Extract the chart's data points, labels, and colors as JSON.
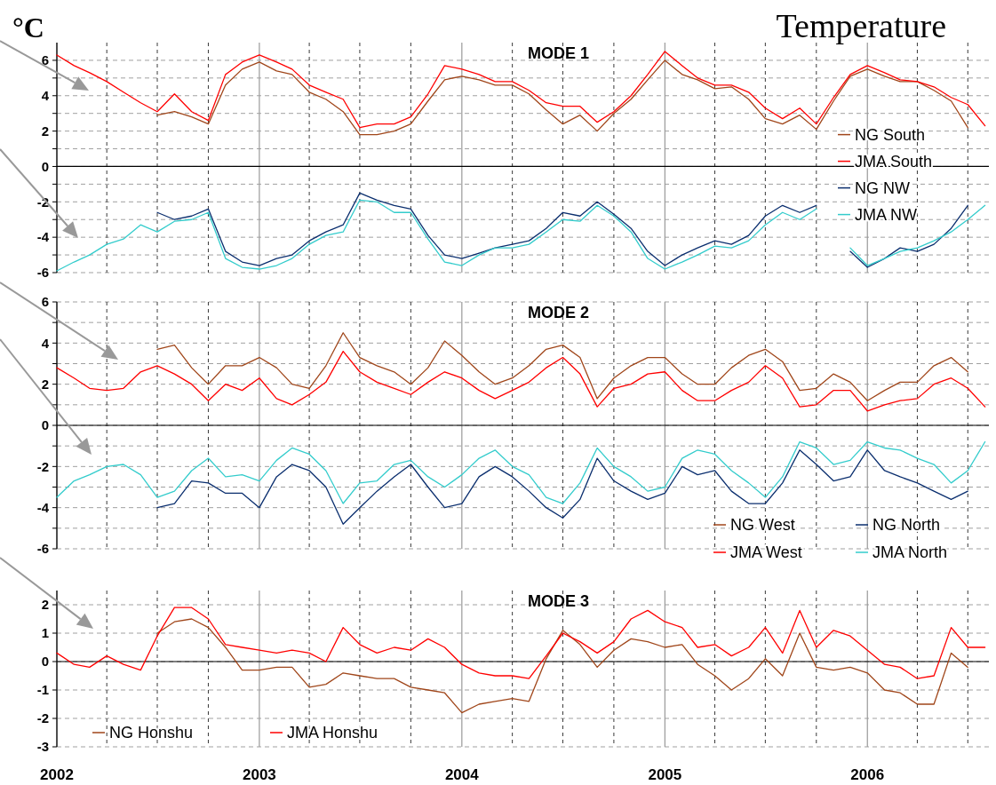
{
  "chart_data": [
    {
      "type": "line",
      "title": "MODE 1",
      "ylabel": "°C",
      "annotations": [
        "Temperature"
      ],
      "x": [
        "2002-01",
        "2002-02",
        "2002-03",
        "2002-04",
        "2002-05",
        "2002-06",
        "2002-07",
        "2002-08",
        "2002-09",
        "2002-10",
        "2002-11",
        "2002-12",
        "2003-01",
        "2003-02",
        "2003-03",
        "2003-04",
        "2003-05",
        "2003-06",
        "2003-07",
        "2003-08",
        "2003-09",
        "2003-10",
        "2003-11",
        "2003-12",
        "2004-01",
        "2004-02",
        "2004-03",
        "2004-04",
        "2004-05",
        "2004-06",
        "2004-07",
        "2004-08",
        "2004-09",
        "2004-10",
        "2004-11",
        "2004-12",
        "2005-01",
        "2005-02",
        "2005-03",
        "2005-04",
        "2005-05",
        "2005-06",
        "2005-07",
        "2005-08",
        "2005-09",
        "2005-10",
        "2005-11",
        "2005-12",
        "2006-01",
        "2006-02",
        "2006-03",
        "2006-04",
        "2006-05",
        "2006-06",
        "2006-07",
        "2006-08"
      ],
      "series": [
        {
          "name": "NG South",
          "color": "#a0461a",
          "values": [
            null,
            null,
            null,
            null,
            null,
            null,
            2.9,
            3.1,
            2.8,
            2.4,
            4.6,
            5.5,
            5.9,
            5.4,
            5.2,
            4.2,
            3.8,
            3.1,
            1.8,
            1.8,
            2.0,
            2.4,
            3.7,
            4.9,
            5.1,
            4.9,
            4.6,
            4.6,
            4.1,
            3.2,
            2.4,
            2.9,
            2.0,
            3.0,
            3.8,
            4.9,
            6.0,
            5.2,
            4.9,
            4.4,
            4.5,
            3.8,
            2.7,
            2.4,
            2.9,
            2.1,
            3.7,
            5.1,
            5.5,
            5.1,
            4.8,
            4.8,
            4.3,
            3.7,
            2.2,
            null
          ]
        },
        {
          "name": "JMA South",
          "color": "#ff0000",
          "values": [
            6.3,
            5.7,
            5.3,
            4.8,
            4.2,
            3.6,
            3.1,
            4.1,
            3.1,
            2.6,
            5.2,
            5.9,
            6.3,
            5.9,
            5.5,
            4.6,
            4.2,
            3.8,
            2.2,
            2.4,
            2.4,
            2.8,
            4.1,
            5.7,
            5.5,
            5.2,
            4.8,
            4.8,
            4.3,
            3.6,
            3.4,
            3.4,
            2.5,
            3.1,
            4.0,
            5.2,
            6.5,
            5.7,
            5.0,
            4.6,
            4.6,
            4.2,
            3.3,
            2.7,
            3.3,
            2.4,
            3.9,
            5.2,
            5.7,
            5.3,
            4.9,
            4.8,
            4.5,
            3.9,
            3.5,
            2.3
          ]
        },
        {
          "name": "NG NW",
          "color": "#0a2e6e",
          "values": [
            null,
            null,
            null,
            null,
            null,
            null,
            -2.6,
            -3.0,
            -2.8,
            -2.4,
            -4.8,
            -5.4,
            -5.6,
            -5.2,
            -5.0,
            -4.2,
            -3.7,
            -3.3,
            -1.5,
            -1.9,
            -2.2,
            -2.4,
            -3.9,
            -5.0,
            -5.2,
            -4.9,
            -4.6,
            -4.4,
            -4.2,
            -3.5,
            -2.6,
            -2.8,
            -2.0,
            -2.7,
            -3.5,
            -4.8,
            -5.6,
            -5.0,
            -4.6,
            -4.2,
            -4.4,
            -3.9,
            -2.8,
            -2.2,
            -2.6,
            -2.2,
            null,
            -4.8,
            -5.7,
            -5.2,
            -4.6,
            -4.8,
            -4.4,
            -3.5,
            -2.2,
            null
          ]
        },
        {
          "name": "JMA NW",
          "color": "#33cccc",
          "values": [
            -5.9,
            -5.4,
            -5.0,
            -4.4,
            -4.1,
            -3.3,
            -3.7,
            -3.1,
            -3.0,
            -2.6,
            -5.2,
            -5.7,
            -5.8,
            -5.6,
            -5.2,
            -4.4,
            -3.9,
            -3.7,
            -1.9,
            -2.0,
            -2.6,
            -2.6,
            -4.1,
            -5.4,
            -5.6,
            -5.0,
            -4.6,
            -4.6,
            -4.4,
            -3.7,
            -3.0,
            -3.1,
            -2.2,
            -2.8,
            -3.7,
            -5.2,
            -5.8,
            -5.4,
            -5.0,
            -4.5,
            -4.6,
            -4.2,
            -3.3,
            -2.6,
            -3.0,
            -2.4,
            null,
            -4.6,
            -5.6,
            -5.2,
            -4.8,
            -4.6,
            -4.2,
            -3.7,
            -3.0,
            -2.2
          ]
        }
      ],
      "xlim": [
        "2002-01-01",
        "2006-08-08"
      ],
      "xticks": [
        "2002",
        {
          "value": "2002-04",
          "label": null
        },
        {
          "value": "2002-07",
          "label": null
        },
        {
          "value": "2002-10",
          "label": null
        },
        "2003",
        {
          "value": "2003-04",
          "label": null
        },
        {
          "value": "2003-07",
          "label": null
        },
        {
          "value": "2003-10",
          "label": null
        },
        "2004",
        {
          "value": "2004-04",
          "label": null
        },
        {
          "value": "2004-07",
          "label": null
        },
        {
          "value": "2004-10",
          "label": null
        },
        "2005",
        {
          "value": "2005-04",
          "label": null
        },
        {
          "value": "2005-07",
          "label": null
        },
        {
          "value": "2005-10",
          "label": null
        },
        "2006",
        {
          "value": "2006-04",
          "label": null
        },
        {
          "value": "2006-07",
          "label": null
        }
      ],
      "ylim": [
        -6,
        7
      ],
      "yticks": [
        -6,
        {
          "value": -5,
          "label": null
        },
        -4,
        {
          "value": -3,
          "label": null
        },
        -2,
        {
          "value": -1,
          "label": null
        },
        0,
        {
          "value": 1,
          "label": null
        },
        2,
        {
          "value": 3,
          "label": null
        },
        4,
        {
          "value": 5,
          "label": null
        },
        6
      ],
      "tick_labels": "y",
      "grid": true,
      "legend": "right",
      "line_style": "solid"
    },
    {
      "type": "line",
      "title": "MODE 2",
      "x": [
        "2002-01",
        "2002-02",
        "2002-03",
        "2002-04",
        "2002-05",
        "2002-06",
        "2002-07",
        "2002-08",
        "2002-09",
        "2002-10",
        "2002-11",
        "2002-12",
        "2003-01",
        "2003-02",
        "2003-03",
        "2003-04",
        "2003-05",
        "2003-06",
        "2003-07",
        "2003-08",
        "2003-09",
        "2003-10",
        "2003-11",
        "2003-12",
        "2004-01",
        "2004-02",
        "2004-03",
        "2004-04",
        "2004-05",
        "2004-06",
        "2004-07",
        "2004-08",
        "2004-09",
        "2004-10",
        "2004-11",
        "2004-12",
        "2005-01",
        "2005-02",
        "2005-03",
        "2005-04",
        "2005-05",
        "2005-06",
        "2005-07",
        "2005-08",
        "2005-09",
        "2005-10",
        "2005-11",
        "2005-12",
        "2006-01",
        "2006-02",
        "2006-03",
        "2006-04",
        "2006-05",
        "2006-06",
        "2006-07",
        "2006-08"
      ],
      "series": [
        {
          "name": "NG West",
          "color": "#a0461a",
          "values": [
            null,
            null,
            null,
            null,
            null,
            null,
            3.7,
            3.9,
            2.8,
            2.0,
            2.9,
            2.9,
            3.3,
            2.8,
            2.0,
            1.8,
            2.9,
            4.5,
            3.3,
            2.9,
            2.6,
            2.0,
            2.8,
            4.1,
            3.4,
            2.6,
            2.0,
            2.3,
            2.9,
            3.7,
            3.9,
            3.3,
            1.3,
            2.3,
            2.9,
            3.3,
            3.3,
            2.5,
            2.0,
            2.0,
            2.8,
            3.4,
            3.7,
            3.1,
            1.7,
            1.8,
            2.5,
            2.1,
            1.2,
            1.7,
            2.1,
            2.1,
            2.9,
            3.3,
            2.6,
            null
          ]
        },
        {
          "name": "JMA West",
          "color": "#ff0000",
          "values": [
            2.8,
            2.3,
            1.8,
            1.7,
            1.8,
            2.6,
            2.9,
            2.5,
            2.0,
            1.2,
            2.0,
            1.7,
            2.3,
            1.3,
            1.0,
            1.5,
            2.1,
            3.6,
            2.6,
            2.1,
            1.8,
            1.5,
            2.1,
            2.6,
            2.3,
            1.7,
            1.3,
            1.7,
            2.1,
            2.8,
            3.3,
            2.5,
            0.9,
            1.8,
            2.0,
            2.5,
            2.6,
            1.7,
            1.2,
            1.2,
            1.7,
            2.1,
            2.9,
            2.3,
            0.9,
            1.0,
            1.7,
            1.7,
            0.7,
            1.0,
            1.2,
            1.3,
            2.0,
            2.3,
            1.8,
            0.9
          ]
        },
        {
          "name": "NG North",
          "color": "#0a2e6e",
          "values": [
            null,
            null,
            null,
            null,
            null,
            null,
            -4.0,
            -3.8,
            -2.7,
            -2.8,
            -3.3,
            -3.3,
            -4.0,
            -2.5,
            -1.9,
            -2.2,
            -3.0,
            -4.8,
            -4.0,
            -3.2,
            -2.5,
            -1.9,
            -3.0,
            -4.0,
            -3.8,
            -2.5,
            -2.0,
            -2.5,
            -3.2,
            -4.0,
            -4.5,
            -3.6,
            -1.6,
            -2.7,
            -3.2,
            -3.6,
            -3.3,
            -2.0,
            -2.4,
            -2.2,
            -3.2,
            -3.8,
            -3.8,
            -2.8,
            -1.2,
            -1.9,
            -2.7,
            -2.5,
            -1.2,
            -2.2,
            -2.5,
            -2.8,
            -3.2,
            -3.6,
            -3.2,
            null
          ]
        },
        {
          "name": "JMA North",
          "color": "#33cccc",
          "values": [
            -3.5,
            -2.7,
            -2.4,
            -2.0,
            -1.9,
            -2.4,
            -3.5,
            -3.2,
            -2.2,
            -1.6,
            -2.5,
            -2.4,
            -2.7,
            -1.7,
            -1.1,
            -1.4,
            -2.2,
            -3.8,
            -2.8,
            -2.7,
            -1.9,
            -1.7,
            -2.5,
            -3.0,
            -2.4,
            -1.6,
            -1.2,
            -2.0,
            -2.4,
            -3.5,
            -3.8,
            -2.8,
            -1.1,
            -2.0,
            -2.5,
            -3.2,
            -3.0,
            -1.6,
            -1.2,
            -1.4,
            -2.2,
            -2.8,
            -3.5,
            -2.5,
            -0.8,
            -1.1,
            -1.9,
            -1.7,
            -0.8,
            -1.1,
            -1.2,
            -1.6,
            -1.9,
            -2.8,
            -2.2,
            -0.8
          ]
        }
      ],
      "xlim": [
        "2002-01-01",
        "2006-08-08"
      ],
      "xticks": [
        "2002",
        {
          "value": "2002-04",
          "label": null
        },
        {
          "value": "2002-07",
          "label": null
        },
        {
          "value": "2002-10",
          "label": null
        },
        "2003",
        {
          "value": "2003-04",
          "label": null
        },
        {
          "value": "2003-07",
          "label": null
        },
        {
          "value": "2003-10",
          "label": null
        },
        "2004",
        {
          "value": "2004-04",
          "label": null
        },
        {
          "value": "2004-07",
          "label": null
        },
        {
          "value": "2004-10",
          "label": null
        },
        "2005",
        {
          "value": "2005-04",
          "label": null
        },
        {
          "value": "2005-07",
          "label": null
        },
        {
          "value": "2005-10",
          "label": null
        },
        "2006",
        {
          "value": "2006-04",
          "label": null
        },
        {
          "value": "2006-07",
          "label": null
        }
      ],
      "ylim": [
        -6,
        6
      ],
      "yticks": [
        -6,
        {
          "value": -5,
          "label": null
        },
        -4,
        {
          "value": -3,
          "label": null
        },
        -2,
        {
          "value": -1,
          "label": null
        },
        0,
        {
          "value": 1,
          "label": null
        },
        2,
        {
          "value": 3,
          "label": null
        },
        4,
        {
          "value": 5,
          "label": null
        },
        6
      ],
      "tick_labels": "y",
      "grid": true,
      "legend": "bottom right",
      "line_style": "solid"
    },
    {
      "type": "line",
      "title": "MODE 3",
      "x": [
        "2002-01",
        "2002-02",
        "2002-03",
        "2002-04",
        "2002-05",
        "2002-06",
        "2002-07",
        "2002-08",
        "2002-09",
        "2002-10",
        "2002-11",
        "2002-12",
        "2003-01",
        "2003-02",
        "2003-03",
        "2003-04",
        "2003-05",
        "2003-06",
        "2003-07",
        "2003-08",
        "2003-09",
        "2003-10",
        "2003-11",
        "2003-12",
        "2004-01",
        "2004-02",
        "2004-03",
        "2004-04",
        "2004-05",
        "2004-06",
        "2004-07",
        "2004-08",
        "2004-09",
        "2004-10",
        "2004-11",
        "2004-12",
        "2005-01",
        "2005-02",
        "2005-03",
        "2005-04",
        "2005-05",
        "2005-06",
        "2005-07",
        "2005-08",
        "2005-09",
        "2005-10",
        "2005-11",
        "2005-12",
        "2006-01",
        "2006-02",
        "2006-03",
        "2006-04",
        "2006-05",
        "2006-06",
        "2006-07",
        "2006-08"
      ],
      "series": [
        {
          "name": "NG Honshu",
          "color": "#a0461a",
          "values": [
            null,
            null,
            null,
            null,
            null,
            null,
            1.0,
            1.4,
            1.5,
            1.2,
            0.5,
            -0.3,
            -0.3,
            -0.2,
            -0.2,
            -0.9,
            -0.8,
            -0.4,
            -0.5,
            -0.6,
            -0.6,
            -0.9,
            -1.0,
            -1.1,
            -1.8,
            -1.5,
            -1.4,
            -1.3,
            -1.4,
            0.1,
            1.1,
            0.6,
            -0.2,
            0.4,
            0.8,
            0.7,
            0.5,
            0.6,
            -0.1,
            -0.5,
            -1.0,
            -0.6,
            0.1,
            -0.5,
            1.0,
            -0.2,
            -0.3,
            -0.2,
            -0.4,
            -1.0,
            -1.1,
            -1.5,
            -1.5,
            0.3,
            -0.2,
            null
          ]
        },
        {
          "name": "JMA Honshu",
          "color": "#ff0000",
          "values": [
            0.3,
            -0.1,
            -0.2,
            0.2,
            -0.1,
            -0.3,
            0.9,
            1.9,
            1.9,
            1.5,
            0.6,
            0.5,
            0.4,
            0.3,
            0.4,
            0.3,
            0.0,
            1.2,
            0.6,
            0.3,
            0.5,
            0.4,
            0.8,
            0.5,
            -0.1,
            -0.4,
            -0.5,
            -0.5,
            -0.6,
            0.2,
            1.0,
            0.7,
            0.3,
            0.7,
            1.5,
            1.8,
            1.4,
            1.2,
            0.5,
            0.6,
            0.2,
            0.5,
            1.2,
            0.3,
            1.8,
            0.5,
            1.1,
            0.9,
            0.4,
            -0.1,
            -0.2,
            -0.6,
            -0.5,
            1.2,
            0.5,
            0.5
          ]
        }
      ],
      "xlim": [
        "2002-01-01",
        "2006-08-08"
      ],
      "xticks": [
        "2002",
        {
          "value": "2002-04",
          "label": null
        },
        {
          "value": "2002-07",
          "label": null
        },
        {
          "value": "2002-10",
          "label": null
        },
        "2003",
        {
          "value": "2003-04",
          "label": null
        },
        {
          "value": "2003-07",
          "label": null
        },
        {
          "value": "2003-10",
          "label": null
        },
        "2004",
        {
          "value": "2004-04",
          "label": null
        },
        {
          "value": "2004-07",
          "label": null
        },
        {
          "value": "2004-10",
          "label": null
        },
        "2005",
        {
          "value": "2005-04",
          "label": null
        },
        {
          "value": "2005-07",
          "label": null
        },
        {
          "value": "2005-10",
          "label": null
        },
        "2006",
        {
          "value": "2006-04",
          "label": null
        },
        {
          "value": "2006-07",
          "label": null
        }
      ],
      "ylim": [
        -3,
        2.5
      ],
      "yticks": [
        -3,
        -2,
        -1,
        0,
        1,
        2
      ],
      "grid": true,
      "legend": "bottom left",
      "line_style": "solid"
    }
  ]
}
